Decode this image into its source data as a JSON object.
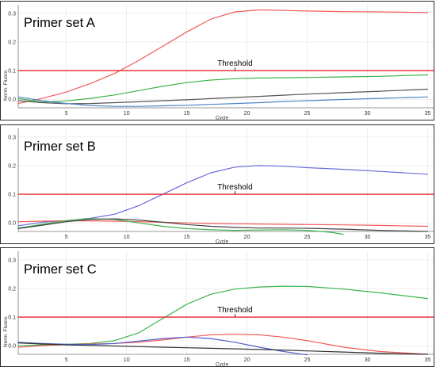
{
  "panels": [
    {
      "title": "Primer set A",
      "threshold_label": "Threshold",
      "xlabel": "Cycle",
      "ylabel": "Norm. Fluoro."
    },
    {
      "title": "Primer set B",
      "threshold_label": "Threshold",
      "xlabel": "Cycle",
      "ylabel": ""
    },
    {
      "title": "Primer set C",
      "threshold_label": "Threshold",
      "xlabel": "Cycle",
      "ylabel": "Norm. Fluoro."
    }
  ],
  "chart_data": [
    {
      "type": "line",
      "title": "Primer set A",
      "xlabel": "Cycle",
      "ylabel": "Norm. Fluoro.",
      "xlim": [
        1,
        35.5
      ],
      "ylim": [
        -0.03,
        0.33
      ],
      "xticks": [
        5,
        10,
        15,
        20,
        25,
        30,
        35
      ],
      "yticks": [
        0.0,
        0.1,
        0.2,
        0.3
      ],
      "ytick_labels": [
        "0.0",
        "0.1",
        "0.2",
        "0.3"
      ],
      "threshold": 0.1,
      "threshold_label": "Threshold",
      "threshold_label_x": 19,
      "series": [
        {
          "color": "#f25a5a",
          "x": [
            1,
            3,
            5,
            7,
            9,
            11,
            13,
            15,
            17,
            19,
            21,
            23,
            25,
            28,
            31,
            35
          ],
          "values": [
            -0.015,
            0.003,
            0.025,
            0.055,
            0.09,
            0.135,
            0.185,
            0.235,
            0.28,
            0.305,
            0.312,
            0.31,
            0.308,
            0.306,
            0.305,
            0.303
          ]
        },
        {
          "color": "#3cb44b",
          "x": [
            1,
            3,
            5,
            7,
            9,
            11,
            13,
            15,
            17,
            19,
            21,
            23,
            25,
            28,
            31,
            35
          ],
          "values": [
            0.002,
            -0.01,
            -0.006,
            0.003,
            0.015,
            0.03,
            0.045,
            0.058,
            0.067,
            0.072,
            0.074,
            0.075,
            0.076,
            0.078,
            0.08,
            0.085
          ]
        },
        {
          "color": "#555555",
          "x": [
            1,
            3,
            5,
            7,
            9,
            11,
            13,
            15,
            17,
            19,
            21,
            23,
            25,
            28,
            31,
            35
          ],
          "values": [
            -0.005,
            -0.012,
            -0.016,
            -0.015,
            -0.012,
            -0.009,
            -0.005,
            -0.002,
            0.002,
            0.006,
            0.01,
            0.014,
            0.018,
            0.023,
            0.028,
            0.035
          ]
        },
        {
          "color": "#4f86c6",
          "x": [
            1,
            3,
            5,
            7,
            9,
            11,
            13,
            15,
            17,
            19,
            21,
            23,
            25,
            28,
            31,
            35
          ],
          "values": [
            0.008,
            -0.005,
            -0.015,
            -0.022,
            -0.025,
            -0.025,
            -0.023,
            -0.021,
            -0.018,
            -0.015,
            -0.012,
            -0.008,
            -0.005,
            -0.001,
            0.003,
            0.008
          ]
        }
      ]
    },
    {
      "type": "line",
      "title": "Primer set B",
      "xlabel": "Cycle",
      "ylabel": "",
      "xlim": [
        1,
        35.5
      ],
      "ylim": [
        -0.03,
        0.33
      ],
      "xticks": [
        5,
        10,
        15,
        20,
        25,
        30,
        35
      ],
      "yticks": [
        0.0,
        0.1,
        0.2,
        0.3
      ],
      "ytick_labels": [
        "0.0",
        "0.1",
        "0.2",
        "0.3"
      ],
      "threshold": 0.1,
      "threshold_label": "Threshold",
      "threshold_label_x": 19,
      "series": [
        {
          "color": "#6b6bdc",
          "x": [
            1,
            3,
            5,
            7,
            9,
            11,
            13,
            15,
            17,
            19,
            21,
            23,
            25,
            28,
            31,
            35
          ],
          "values": [
            -0.01,
            0.002,
            0.008,
            0.016,
            0.03,
            0.06,
            0.1,
            0.14,
            0.175,
            0.195,
            0.2,
            0.198,
            0.193,
            0.187,
            0.18,
            0.17
          ]
        },
        {
          "color": "#f25a5a",
          "x": [
            1,
            3,
            5,
            7,
            9,
            11,
            13,
            15,
            17,
            19,
            21,
            23,
            25,
            28,
            31,
            35
          ],
          "values": [
            0.004,
            0.006,
            0.007,
            0.007,
            0.006,
            0.004,
            0.002,
            0.0,
            -0.002,
            -0.003,
            -0.004,
            -0.005,
            -0.006,
            -0.007,
            -0.009,
            -0.012
          ]
        },
        {
          "color": "#3cb44b",
          "x": [
            1,
            3,
            5,
            7,
            9,
            11,
            13,
            15,
            17,
            19,
            21,
            23,
            25,
            27,
            28
          ],
          "values": [
            -0.018,
            -0.005,
            0.008,
            0.015,
            0.012,
            0.0,
            -0.012,
            -0.02,
            -0.024,
            -0.026,
            -0.025,
            -0.024,
            -0.026,
            -0.033,
            -0.04
          ]
        },
        {
          "color": "#444444",
          "x": [
            1,
            3,
            5,
            7,
            9,
            11,
            13,
            15,
            17,
            19,
            21,
            23,
            25,
            28,
            31,
            35
          ],
          "values": [
            -0.02,
            -0.008,
            0.004,
            0.012,
            0.014,
            0.01,
            0.002,
            -0.006,
            -0.012,
            -0.016,
            -0.018,
            -0.018,
            -0.019,
            -0.022,
            -0.026,
            -0.03
          ]
        }
      ]
    },
    {
      "type": "line",
      "title": "Primer set C",
      "xlabel": "Cycle",
      "ylabel": "Norm. Fluoro.",
      "xlim": [
        1,
        35.5
      ],
      "ylim": [
        -0.03,
        0.33
      ],
      "xticks": [
        5,
        10,
        15,
        20,
        25,
        30,
        35
      ],
      "yticks": [
        0.0,
        0.1,
        0.2,
        0.3
      ],
      "ytick_labels": [
        "0.0",
        "0.1",
        "0.2",
        "0.3"
      ],
      "threshold": 0.1,
      "threshold_label": "Threshold",
      "threshold_label_x": 19,
      "series": [
        {
          "color": "#3cb44b",
          "x": [
            1,
            3,
            5,
            7,
            9,
            11,
            13,
            15,
            17,
            19,
            21,
            23,
            25,
            28,
            31,
            35
          ],
          "values": [
            0.0,
            0.003,
            0.005,
            0.008,
            0.018,
            0.045,
            0.095,
            0.145,
            0.18,
            0.198,
            0.205,
            0.208,
            0.207,
            0.198,
            0.185,
            0.165
          ]
        },
        {
          "color": "#f25a5a",
          "x": [
            1,
            3,
            5,
            7,
            9,
            11,
            13,
            15,
            17,
            19,
            21,
            23,
            25,
            28,
            31,
            35
          ],
          "values": [
            -0.005,
            0.0,
            0.004,
            0.006,
            0.008,
            0.012,
            0.02,
            0.03,
            0.038,
            0.04,
            0.038,
            0.03,
            0.018,
            -0.005,
            -0.02,
            -0.03
          ]
        },
        {
          "color": "#4f5fc8",
          "x": [
            1,
            3,
            5,
            7,
            9,
            11,
            13,
            15,
            17,
            19,
            21,
            23,
            25
          ],
          "values": [
            0.012,
            0.008,
            0.005,
            0.004,
            0.008,
            0.016,
            0.025,
            0.03,
            0.025,
            0.012,
            -0.005,
            -0.02,
            -0.032
          ]
        },
        {
          "color": "#333333",
          "x": [
            1,
            3,
            5,
            7,
            9,
            11,
            13,
            15,
            17,
            19,
            21,
            23,
            25,
            28,
            31,
            35
          ],
          "values": [
            0.01,
            0.006,
            0.003,
            0.001,
            -0.001,
            -0.003,
            -0.005,
            -0.007,
            -0.009,
            -0.011,
            -0.013,
            -0.015,
            -0.018,
            -0.022,
            -0.026,
            -0.03
          ]
        }
      ]
    }
  ]
}
